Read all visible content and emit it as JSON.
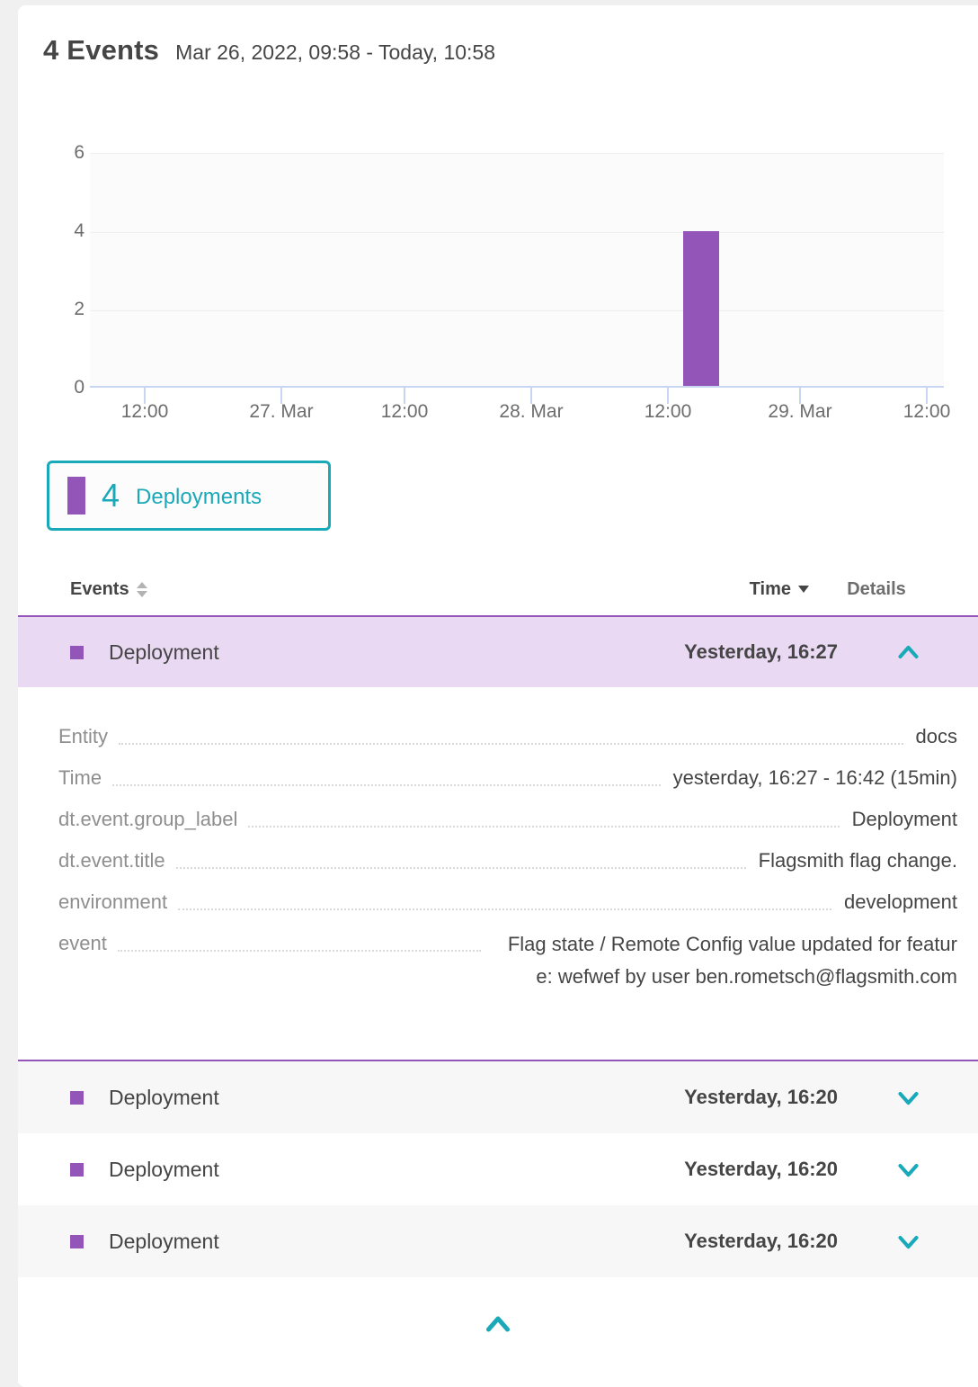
{
  "header": {
    "title": "4 Events",
    "time_range": "Mar 26, 2022, 09:58 - Today, 10:58"
  },
  "chart_data": {
    "type": "bar",
    "title": "4 Events",
    "xlabel": "",
    "ylabel": "",
    "x_ticks": [
      "12:00",
      "27. Mar",
      "12:00",
      "28. Mar",
      "12:00",
      "29. Mar",
      "12:00"
    ],
    "y_ticks": [
      "6",
      "4",
      "2",
      "0"
    ],
    "ylim": [
      0,
      6
    ],
    "grid": true,
    "legend_position": "below-left",
    "series": [
      {
        "name": "Deployments",
        "color": "#9355b7",
        "points": [
          {
            "x": "Mar 28, ~16:20 (between 12:00 and 29. Mar)",
            "value": 4
          }
        ]
      }
    ]
  },
  "legend": {
    "count": "4",
    "label": "Deployments",
    "swatch_color": "#9355b7"
  },
  "table": {
    "header": {
      "events": "Events",
      "time": "Time",
      "details": "Details"
    },
    "rows": [
      {
        "type_label": "Deployment",
        "time": "Yesterday, 16:27",
        "expanded": true
      },
      {
        "type_label": "Deployment",
        "time": "Yesterday, 16:20",
        "expanded": false
      },
      {
        "type_label": "Deployment",
        "time": "Yesterday, 16:20",
        "expanded": false
      },
      {
        "type_label": "Deployment",
        "time": "Yesterday, 16:20",
        "expanded": false
      }
    ],
    "expanded_details": {
      "fields": [
        {
          "key": "Entity",
          "value": "docs"
        },
        {
          "key": "Time",
          "value": "yesterday, 16:27 - 16:42 (15min)"
        },
        {
          "key": "dt.event.group_label",
          "value": "Deployment"
        },
        {
          "key": "dt.event.title",
          "value": "Flagsmith flag change."
        },
        {
          "key": "environment",
          "value": "development"
        },
        {
          "key": "event",
          "value": "Flag state / Remote Config value updated for feature: wefwef by user ben.rometsch@flagsmith.com"
        }
      ]
    }
  },
  "colors": {
    "accent_purple": "#9355b7",
    "accent_teal": "#1aa9b9",
    "row_highlight": "#ead9f3",
    "row_alt_gray": "#f7f7f7",
    "axis_blue": "#c9d6f2",
    "text_dark": "#454545",
    "text_gray": "#8e8e8e"
  }
}
